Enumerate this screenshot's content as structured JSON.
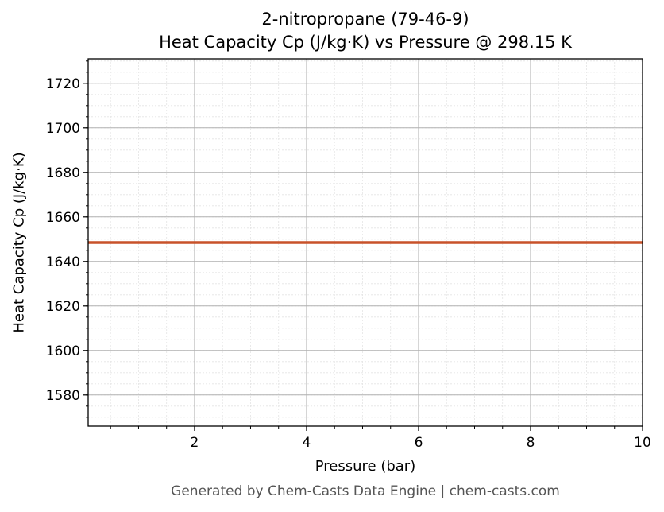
{
  "chart_data": {
    "type": "line",
    "title": "2-nitropropane (79-46-9)",
    "subtitle": "Heat Capacity Cp (J/kg·K) vs Pressure @ 298.15 K",
    "xlabel": "Pressure (bar)",
    "ylabel": "Heat Capacity Cp (J/kg·K)",
    "xlim": [
      0.1,
      10
    ],
    "ylim": [
      1566,
      1731
    ],
    "x_ticks": [
      2,
      4,
      6,
      8,
      10
    ],
    "y_ticks": [
      1580,
      1600,
      1620,
      1640,
      1660,
      1680,
      1700,
      1720
    ],
    "grid": true,
    "series": [
      {
        "x": [
          0.1,
          10
        ],
        "values": [
          1648.5,
          1648.5
        ],
        "color": "#c8522a"
      }
    ]
  },
  "footer": "Generated by Chem-Casts Data Engine | chem-casts.com"
}
